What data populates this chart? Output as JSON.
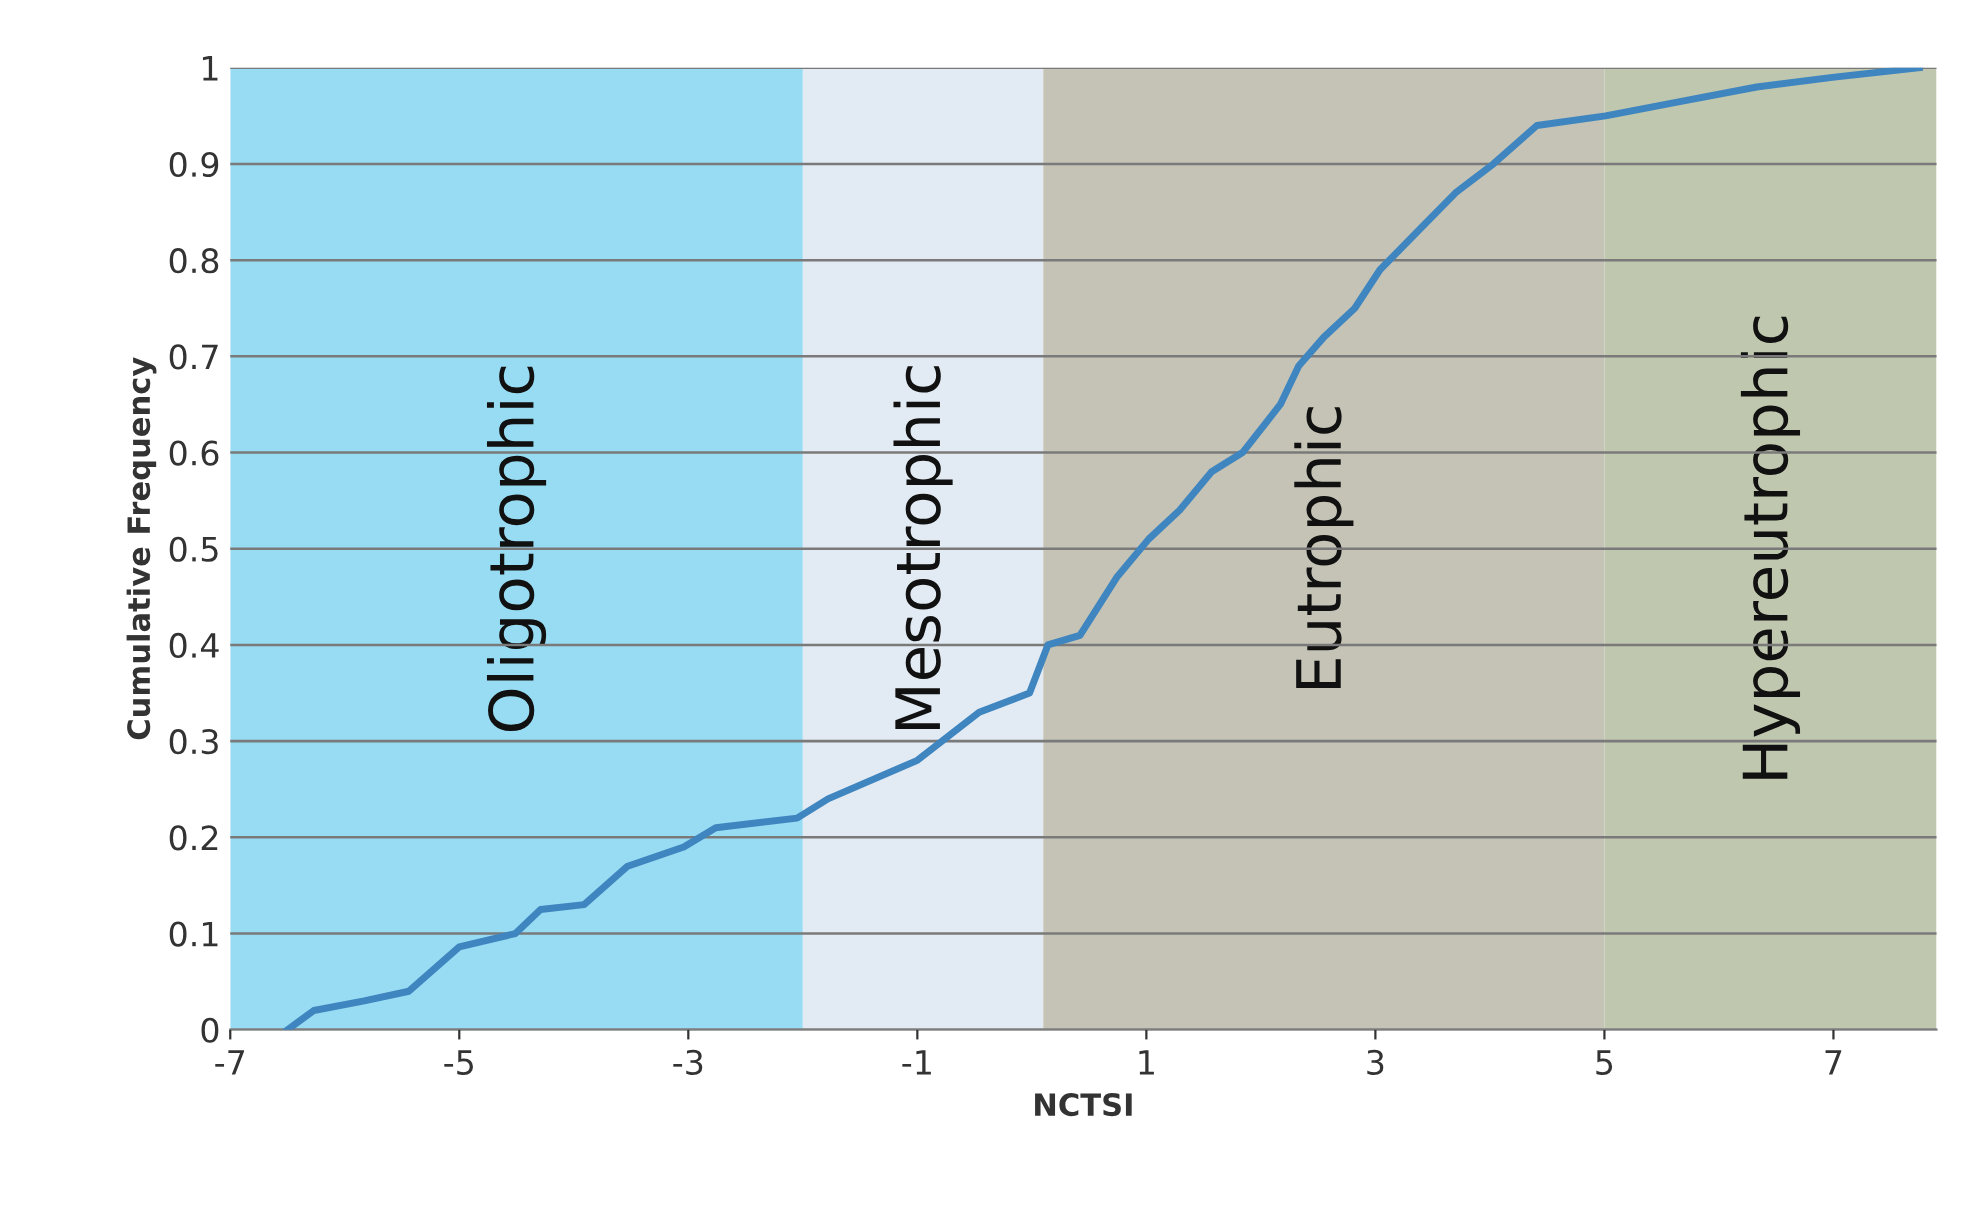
{
  "chart_data": {
    "type": "line",
    "xlabel": "NCTSI",
    "ylabel": "Cumulative Frequency",
    "series": [
      {
        "color": "#3f85bf",
        "x": [
          -6.5,
          -6.27,
          -5.83,
          -5.44,
          -5.0,
          -4.51,
          -4.29,
          -3.91,
          -3.53,
          -3.04,
          -2.76,
          -2.05,
          -1.78,
          -1.0,
          -0.46,
          -0.02,
          0.14,
          0.42,
          0.74,
          1.02,
          1.29,
          1.57,
          1.84,
          2.17,
          2.33,
          2.55,
          2.82,
          3.04,
          3.37,
          3.7,
          4.03,
          4.41,
          5.01,
          5.67,
          6.33,
          6.99,
          7.75
        ],
        "values": [
          0,
          0.02,
          0.03,
          0.04,
          0.086,
          0.1,
          0.125,
          0.13,
          0.17,
          0.19,
          0.21,
          0.22,
          0.24,
          0.28,
          0.33,
          0.35,
          0.4,
          0.41,
          0.47,
          0.51,
          0.54,
          0.58,
          0.6,
          0.65,
          0.69,
          0.72,
          0.75,
          0.79,
          0.83,
          0.87,
          0.9,
          0.94,
          0.95,
          0.965,
          0.98,
          0.99,
          1.0
        ]
      }
    ],
    "bands": [
      {
        "axis": "x",
        "from": -7,
        "to": -2,
        "label": "Oligotrophic",
        "color": "#97dcf2"
      },
      {
        "axis": "x",
        "from": -2,
        "to": 0.1,
        "label": "Mesotrophic",
        "color": "#e2ebf3"
      },
      {
        "axis": "x",
        "from": 0.1,
        "to": 5,
        "label": "Eutrophic",
        "color": "#c4c3b6"
      },
      {
        "axis": "x",
        "from": 5,
        "to": 7.9,
        "label": "Hypereutrophic",
        "color": "#bfc7ae"
      }
    ],
    "xlim": [
      -7,
      7.9
    ],
    "xticks": [
      -7,
      -5,
      -3,
      -1,
      1,
      3,
      5,
      7
    ],
    "ylim": [
      0,
      1
    ],
    "yticks": [
      0,
      0.1,
      0.2,
      0.3,
      0.4,
      0.5,
      0.6,
      0.7,
      0.8,
      0.9,
      1
    ],
    "grid": "y",
    "marker": "none",
    "line_style": "solid"
  }
}
